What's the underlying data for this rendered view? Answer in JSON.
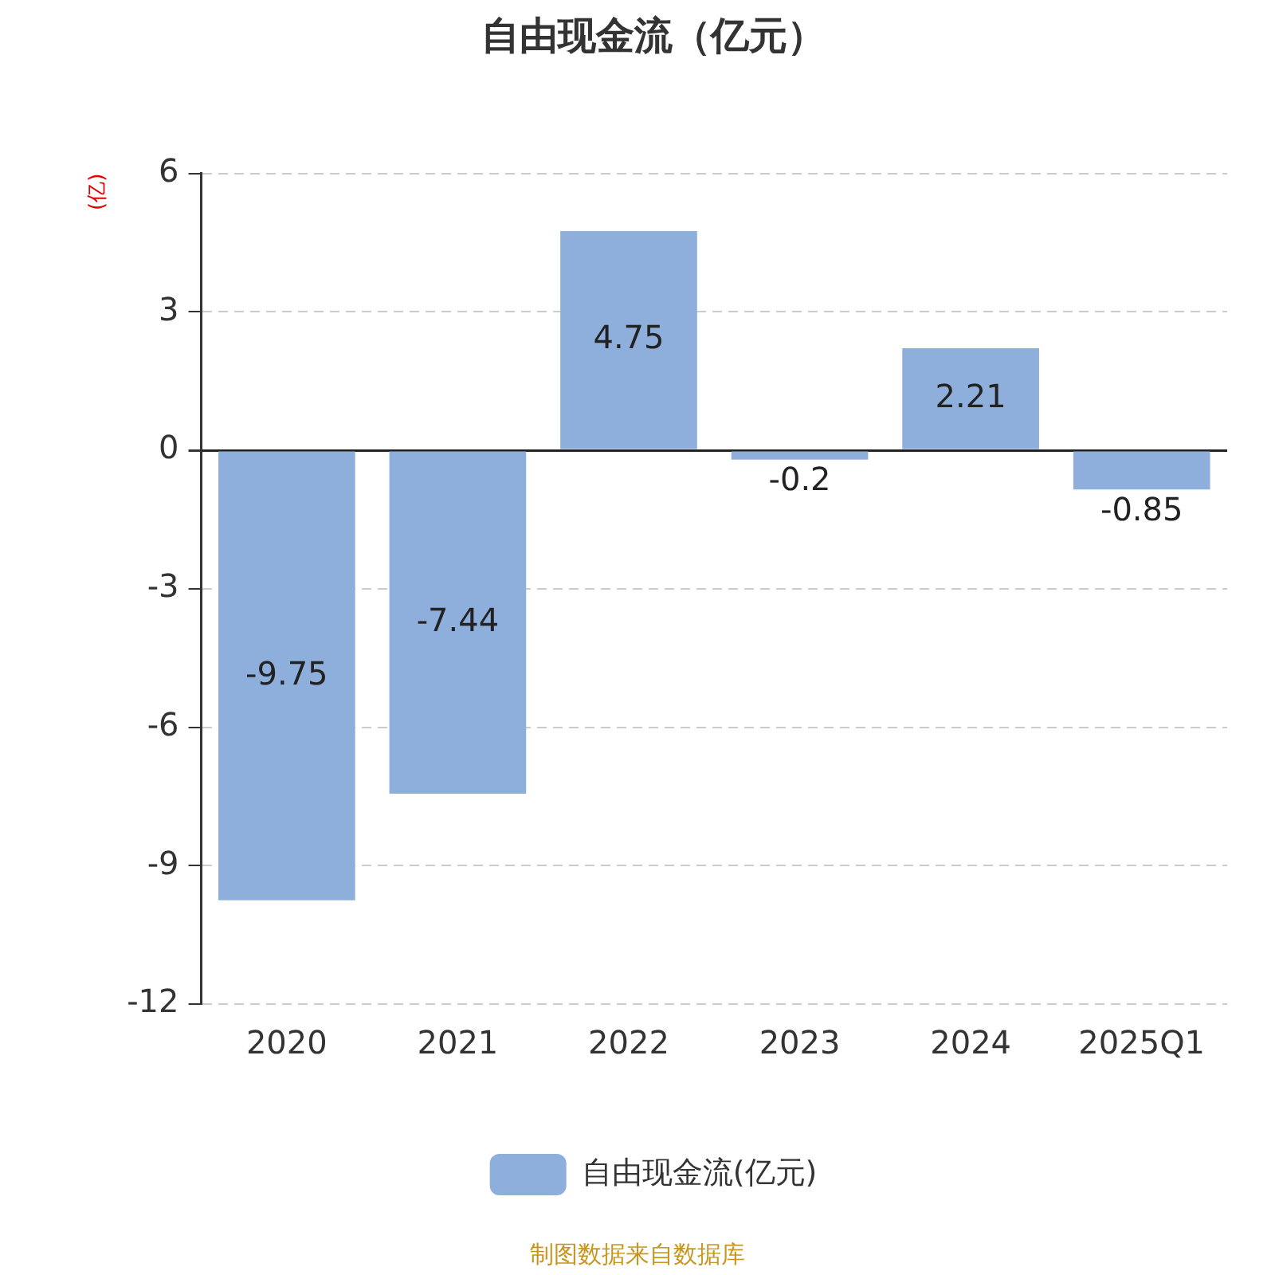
{
  "chart_data": {
    "type": "bar",
    "title": "自由现金流（亿元）",
    "ylabel": "(亿)",
    "categories": [
      "2020",
      "2021",
      "2022",
      "2023",
      "2024",
      "2025Q1"
    ],
    "series": [
      {
        "name": "自由现金流(亿元)",
        "color": "#8eaedb",
        "values": [
          -9.75,
          -7.44,
          4.75,
          -0.2,
          2.21,
          -0.85
        ]
      }
    ],
    "ylim": [
      -12,
      6
    ],
    "yticks": [
      -12,
      -9,
      -6,
      -3,
      0,
      3,
      6
    ],
    "grid": "y",
    "legend": "bottom",
    "data_labels": true,
    "annotations": [
      "制图数据来自数据库"
    ]
  }
}
